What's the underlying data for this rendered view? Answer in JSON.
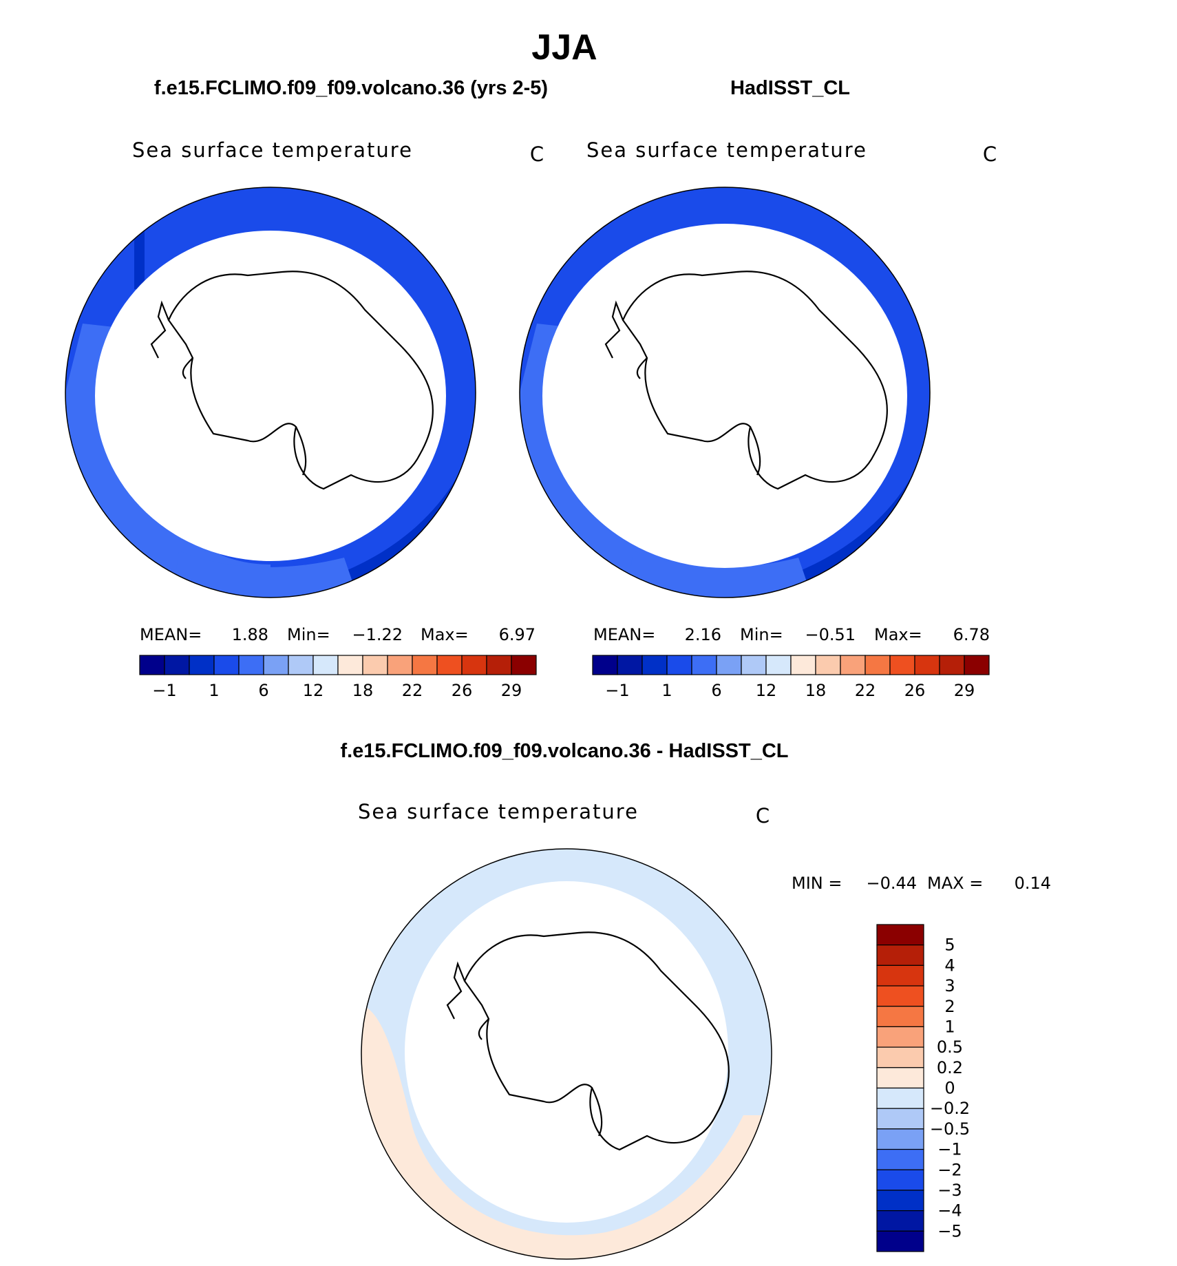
{
  "page": {
    "title": "JJA"
  },
  "chart_data": [
    {
      "type": "polar-map",
      "case_title": "f.e15.FCLIMO.f09_f09.volcano.36 (yrs 2-5)",
      "variable": "Sea surface temperature",
      "units": "C",
      "stats": {
        "mean_label": "MEAN=",
        "mean": "1.88",
        "min_label": "Min=",
        "min": "−1.22",
        "max_label": "Max=",
        "max": "6.97"
      },
      "colorbar": {
        "colors": [
          "#00008b",
          "#0017a3",
          "#0030c7",
          "#1a4bea",
          "#3d6ef5",
          "#7aa1f5",
          "#afc9f7",
          "#d6e8fb",
          "#fde9da",
          "#fbcbae",
          "#f9a27a",
          "#f57743",
          "#ee5020",
          "#d7350f",
          "#b51f08",
          "#8b0000"
        ],
        "tick_labels": [
          "−1",
          "1",
          "6",
          "12",
          "18",
          "22",
          "26",
          "29"
        ]
      }
    },
    {
      "type": "polar-map",
      "case_title": "HadISST_CL",
      "variable": "Sea surface temperature",
      "units": "C",
      "stats": {
        "mean_label": "MEAN=",
        "mean": "2.16",
        "min_label": "Min=",
        "min": "−0.51",
        "max_label": "Max=",
        "max": "6.78"
      },
      "colorbar": {
        "colors": [
          "#00008b",
          "#0017a3",
          "#0030c7",
          "#1a4bea",
          "#3d6ef5",
          "#7aa1f5",
          "#afc9f7",
          "#d6e8fb",
          "#fde9da",
          "#fbcbae",
          "#f9a27a",
          "#f57743",
          "#ee5020",
          "#d7350f",
          "#b51f08",
          "#8b0000"
        ],
        "tick_labels": [
          "−1",
          "1",
          "6",
          "12",
          "18",
          "22",
          "26",
          "29"
        ]
      }
    },
    {
      "type": "polar-map-difference",
      "case_title": "f.e15.FCLIMO.f09_f09.volcano.36 - HadISST_CL",
      "variable": "Sea surface temperature",
      "units": "C",
      "stats": {
        "min_label": "MIN =",
        "min": "−0.44",
        "max_label": "MAX =",
        "max": "0.14"
      },
      "colorbar": {
        "colors_top_to_bottom": [
          "#8b0000",
          "#b51f08",
          "#d7350f",
          "#ee5020",
          "#f57743",
          "#f9a27a",
          "#fbcbae",
          "#fde9da",
          "#d6e8fb",
          "#afc9f7",
          "#7aa1f5",
          "#3d6ef5",
          "#1a4bea",
          "#0030c7",
          "#0017a3",
          "#00008b"
        ],
        "tick_labels": [
          "5",
          "4",
          "3",
          "2",
          "1",
          "0.5",
          "0.2",
          "0",
          "−0.2",
          "−0.5",
          "−1",
          "−2",
          "−3",
          "−4",
          "−5"
        ]
      }
    }
  ]
}
